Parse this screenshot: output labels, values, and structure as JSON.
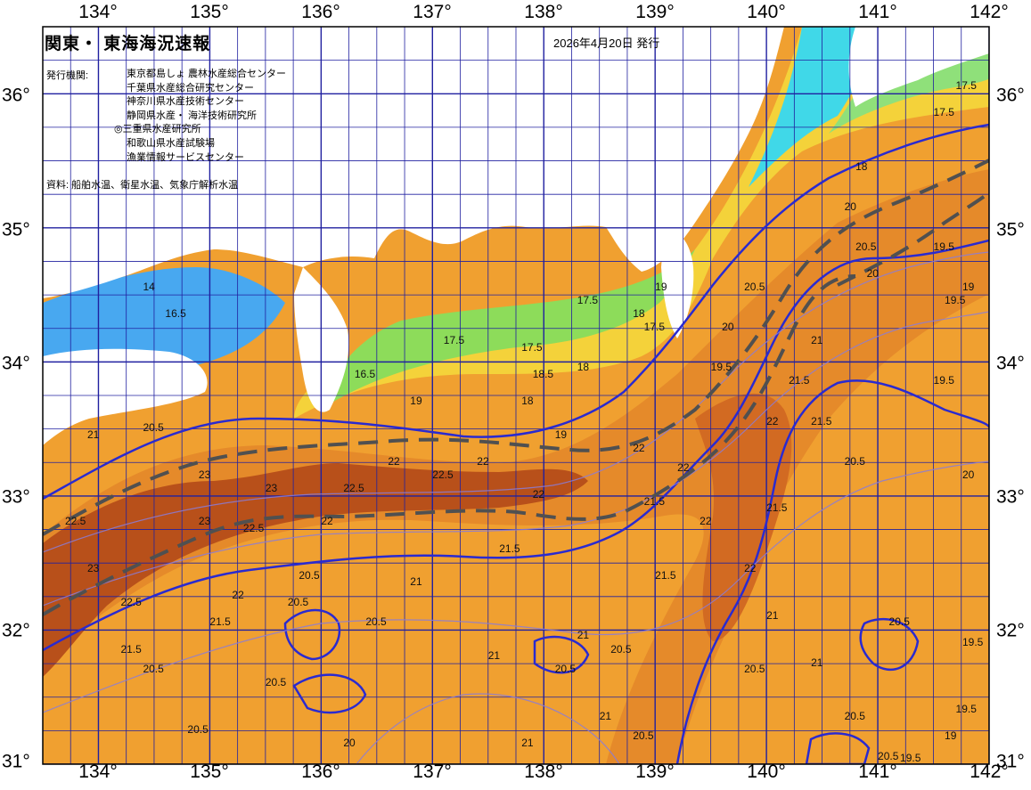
{
  "map": {
    "title": "関東・ 東海海況速報",
    "issue_date": "2026年4月20日 発行",
    "agency_label": "発行機関:",
    "agencies": [
      "東京都島しょ 農林水産総合センター",
      "千葉県水産総合研究センター",
      "神奈川県水産技術センター",
      "静岡県水産・ 海洋技術研究所",
      "◎三重県水産研究所",
      "和歌山県水産試験場",
      "漁業情報サービスセンター"
    ],
    "source": "資料: 船舶水温、衛星水温、気象庁解析水温",
    "longitude_labels": [
      "134°",
      "135°",
      "136°",
      "137°",
      "138°",
      "139°",
      "140°",
      "141°",
      "142°"
    ],
    "latitude_labels": [
      "36°",
      "35°",
      "34°",
      "33°",
      "32°",
      "31°"
    ],
    "extent": {
      "lon_min": 133.5,
      "lon_max": 142.0,
      "lat_min": 31.0,
      "lat_max": 36.5
    },
    "isotherm_labels": [
      {
        "text": "17.5",
        "lon": 141.7,
        "lat": 36.1
      },
      {
        "text": "17.5",
        "lon": 141.5,
        "lat": 35.9
      },
      {
        "text": "18",
        "lon": 140.8,
        "lat": 35.5
      },
      {
        "text": "20",
        "lon": 140.7,
        "lat": 35.2
      },
      {
        "text": "20.5",
        "lon": 140.8,
        "lat": 34.9
      },
      {
        "text": "19.5",
        "lon": 141.5,
        "lat": 34.9
      },
      {
        "text": "20",
        "lon": 140.9,
        "lat": 34.7
      },
      {
        "text": "19",
        "lon": 141.8,
        "lat": 34.6
      },
      {
        "text": "20.5",
        "lon": 139.8,
        "lat": 34.6
      },
      {
        "text": "21",
        "lon": 140.4,
        "lat": 34.2
      },
      {
        "text": "21.5",
        "lon": 140.2,
        "lat": 33.9
      },
      {
        "text": "19.5",
        "lon": 141.5,
        "lat": 33.9
      },
      {
        "text": "22",
        "lon": 140.0,
        "lat": 33.6
      },
      {
        "text": "21.5",
        "lon": 140.4,
        "lat": 33.6
      },
      {
        "text": "22",
        "lon": 138.8,
        "lat": 33.4
      },
      {
        "text": "22",
        "lon": 139.2,
        "lat": 33.25
      },
      {
        "text": "20.5",
        "lon": 140.7,
        "lat": 33.3
      },
      {
        "text": "20",
        "lon": 141.8,
        "lat": 33.2
      },
      {
        "text": "17.5",
        "lon": 137.1,
        "lat": 34.2
      },
      {
        "text": "17.5",
        "lon": 137.8,
        "lat": 34.15
      },
      {
        "text": "17.5",
        "lon": 138.3,
        "lat": 34.5
      },
      {
        "text": "18.5",
        "lon": 137.9,
        "lat": 33.95
      },
      {
        "text": "18",
        "lon": 138.3,
        "lat": 34.0
      },
      {
        "text": "18",
        "lon": 137.8,
        "lat": 33.75
      },
      {
        "text": "16.5",
        "lon": 136.3,
        "lat": 33.95
      },
      {
        "text": "19",
        "lon": 138.1,
        "lat": 33.5
      },
      {
        "text": "20.5",
        "lon": 134.4,
        "lat": 33.55
      },
      {
        "text": "21",
        "lon": 133.9,
        "lat": 33.5
      },
      {
        "text": "23",
        "lon": 134.9,
        "lat": 33.2
      },
      {
        "text": "22.5",
        "lon": 133.7,
        "lat": 32.85
      },
      {
        "text": "23",
        "lon": 135.5,
        "lat": 33.1
      },
      {
        "text": "22.5",
        "lon": 136.2,
        "lat": 33.1
      },
      {
        "text": "22",
        "lon": 136.6,
        "lat": 33.3
      },
      {
        "text": "22.5",
        "lon": 137.0,
        "lat": 33.2
      },
      {
        "text": "22",
        "lon": 137.4,
        "lat": 33.3
      },
      {
        "text": "22",
        "lon": 137.9,
        "lat": 33.05
      },
      {
        "text": "21.5",
        "lon": 138.9,
        "lat": 33.0
      },
      {
        "text": "23",
        "lon": 134.9,
        "lat": 32.85
      },
      {
        "text": "23",
        "lon": 133.9,
        "lat": 32.5
      },
      {
        "text": "22.5",
        "lon": 134.2,
        "lat": 32.25
      },
      {
        "text": "22.5",
        "lon": 135.3,
        "lat": 32.8
      },
      {
        "text": "22",
        "lon": 136.0,
        "lat": 32.85
      },
      {
        "text": "21.5",
        "lon": 137.6,
        "lat": 32.65
      },
      {
        "text": "22",
        "lon": 139.4,
        "lat": 32.85
      },
      {
        "text": "21.5",
        "lon": 140.0,
        "lat": 32.95
      },
      {
        "text": "20.5",
        "lon": 135.8,
        "lat": 32.45
      },
      {
        "text": "22",
        "lon": 135.2,
        "lat": 32.3
      },
      {
        "text": "21.5",
        "lon": 135.0,
        "lat": 32.1
      },
      {
        "text": "20.5",
        "lon": 135.7,
        "lat": 32.25
      },
      {
        "text": "21",
        "lon": 136.8,
        "lat": 32.4
      },
      {
        "text": "20.5",
        "lon": 136.4,
        "lat": 32.1
      },
      {
        "text": "21",
        "lon": 138.3,
        "lat": 32.0
      },
      {
        "text": "21.5",
        "lon": 139.0,
        "lat": 32.45
      },
      {
        "text": "22",
        "lon": 139.8,
        "lat": 32.5
      },
      {
        "text": "21",
        "lon": 140.0,
        "lat": 32.15
      },
      {
        "text": "20.5",
        "lon": 141.1,
        "lat": 32.1
      },
      {
        "text": "19.5",
        "lon": 141.9,
        "lat": 31.95
      },
      {
        "text": "21.5",
        "lon": 134.2,
        "lat": 31.9
      },
      {
        "text": "20.5",
        "lon": 134.4,
        "lat": 31.75
      },
      {
        "text": "20.5",
        "lon": 135.5,
        "lat": 31.65
      },
      {
        "text": "20.5",
        "lon": 134.8,
        "lat": 31.3
      },
      {
        "text": "20.5",
        "lon": 138.6,
        "lat": 31.9
      },
      {
        "text": "20.5",
        "lon": 138.1,
        "lat": 31.75
      },
      {
        "text": "21",
        "lon": 137.5,
        "lat": 31.85
      },
      {
        "text": "21",
        "lon": 138.5,
        "lat": 31.4
      },
      {
        "text": "21",
        "lon": 137.8,
        "lat": 31.2
      },
      {
        "text": "20.5",
        "lon": 138.8,
        "lat": 31.25
      },
      {
        "text": "20.5",
        "lon": 139.8,
        "lat": 31.75
      },
      {
        "text": "21",
        "lon": 140.4,
        "lat": 31.8
      },
      {
        "text": "20.5",
        "lon": 140.7,
        "lat": 31.4
      },
      {
        "text": "20.5",
        "lon": 141.0,
        "lat": 31.1
      },
      {
        "text": "19.5",
        "lon": 141.2,
        "lat": 31.05
      },
      {
        "text": "19",
        "lon": 141.6,
        "lat": 31.25
      },
      {
        "text": "19.5",
        "lon": 141.7,
        "lat": 31.45
      },
      {
        "text": "20",
        "lon": 136.2,
        "lat": 31.2
      },
      {
        "text": "19.5",
        "lon": 139.5,
        "lat": 34.0
      },
      {
        "text": "20",
        "lon": 139.6,
        "lat": 34.3
      },
      {
        "text": "19",
        "lon": 139.0,
        "lat": 34.6
      },
      {
        "text": "18",
        "lon": 138.8,
        "lat": 34.4
      },
      {
        "text": "17.5",
        "lon": 138.9,
        "lat": 34.3
      },
      {
        "text": "19",
        "lon": 136.8,
        "lat": 33.75
      },
      {
        "text": "16.5",
        "lon": 134.6,
        "lat": 34.4
      },
      {
        "text": "14",
        "lon": 134.4,
        "lat": 34.6
      },
      {
        "text": "19.5",
        "lon": 141.6,
        "lat": 34.5
      }
    ]
  }
}
